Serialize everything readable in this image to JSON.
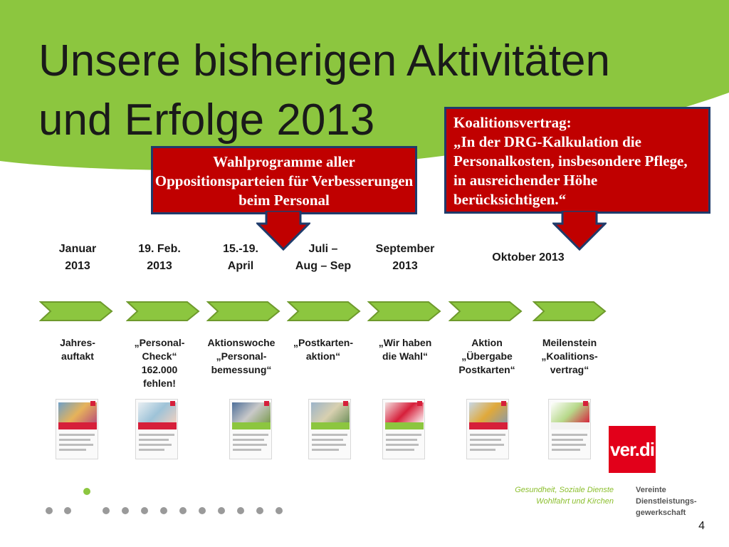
{
  "slide": {
    "title_line1": "Unsere bisherigen Aktivitäten",
    "title_line2": "und Erfolge 2013",
    "page_number": "4",
    "accent_color": "#8cc63f",
    "callout_color": "#c00000"
  },
  "callouts": {
    "wahlprogramme": "Wahlprogramme aller Oppositionsparteien für Verbesserungen beim Personal",
    "koalition_line1": "Koalitionsvertrag:",
    "koalition_line2": "„In der DRG-Kalkulation die Personalkosten, insbesondere Pflege, in ausreichender Höhe berücksichtigen.“"
  },
  "timeline": [
    {
      "date": "Januar\n2013",
      "label": "Jahres-\nauftakt"
    },
    {
      "date": "19. Feb.\n2013",
      "label": "„Personal-\nCheck“\n162.000\nfehlen!"
    },
    {
      "date": "15.-19.\nApril",
      "label": "Aktionswoche\n„Personal-\nbemessung“"
    },
    {
      "date": "Juli –\nAug – Sep",
      "label": "„Postkarten-\naktion“"
    },
    {
      "date": "September\n2013",
      "label": "„Wir haben\ndie Wahl“"
    },
    {
      "date": "Oktober 2013",
      "label": "Aktion\n„Übergabe\nPostkarten“"
    },
    {
      "date": "",
      "label": "Meilenstein\n„Koalitions-\nvertrag“"
    }
  ],
  "footer": {
    "logo_text": "ver.di",
    "tagline_left": "Gesundheit, Soziale Dienste\nWohlfahrt und Kirchen",
    "tagline_right": "Vereinte\nDienstleistungs-\ngewerkschaft"
  }
}
